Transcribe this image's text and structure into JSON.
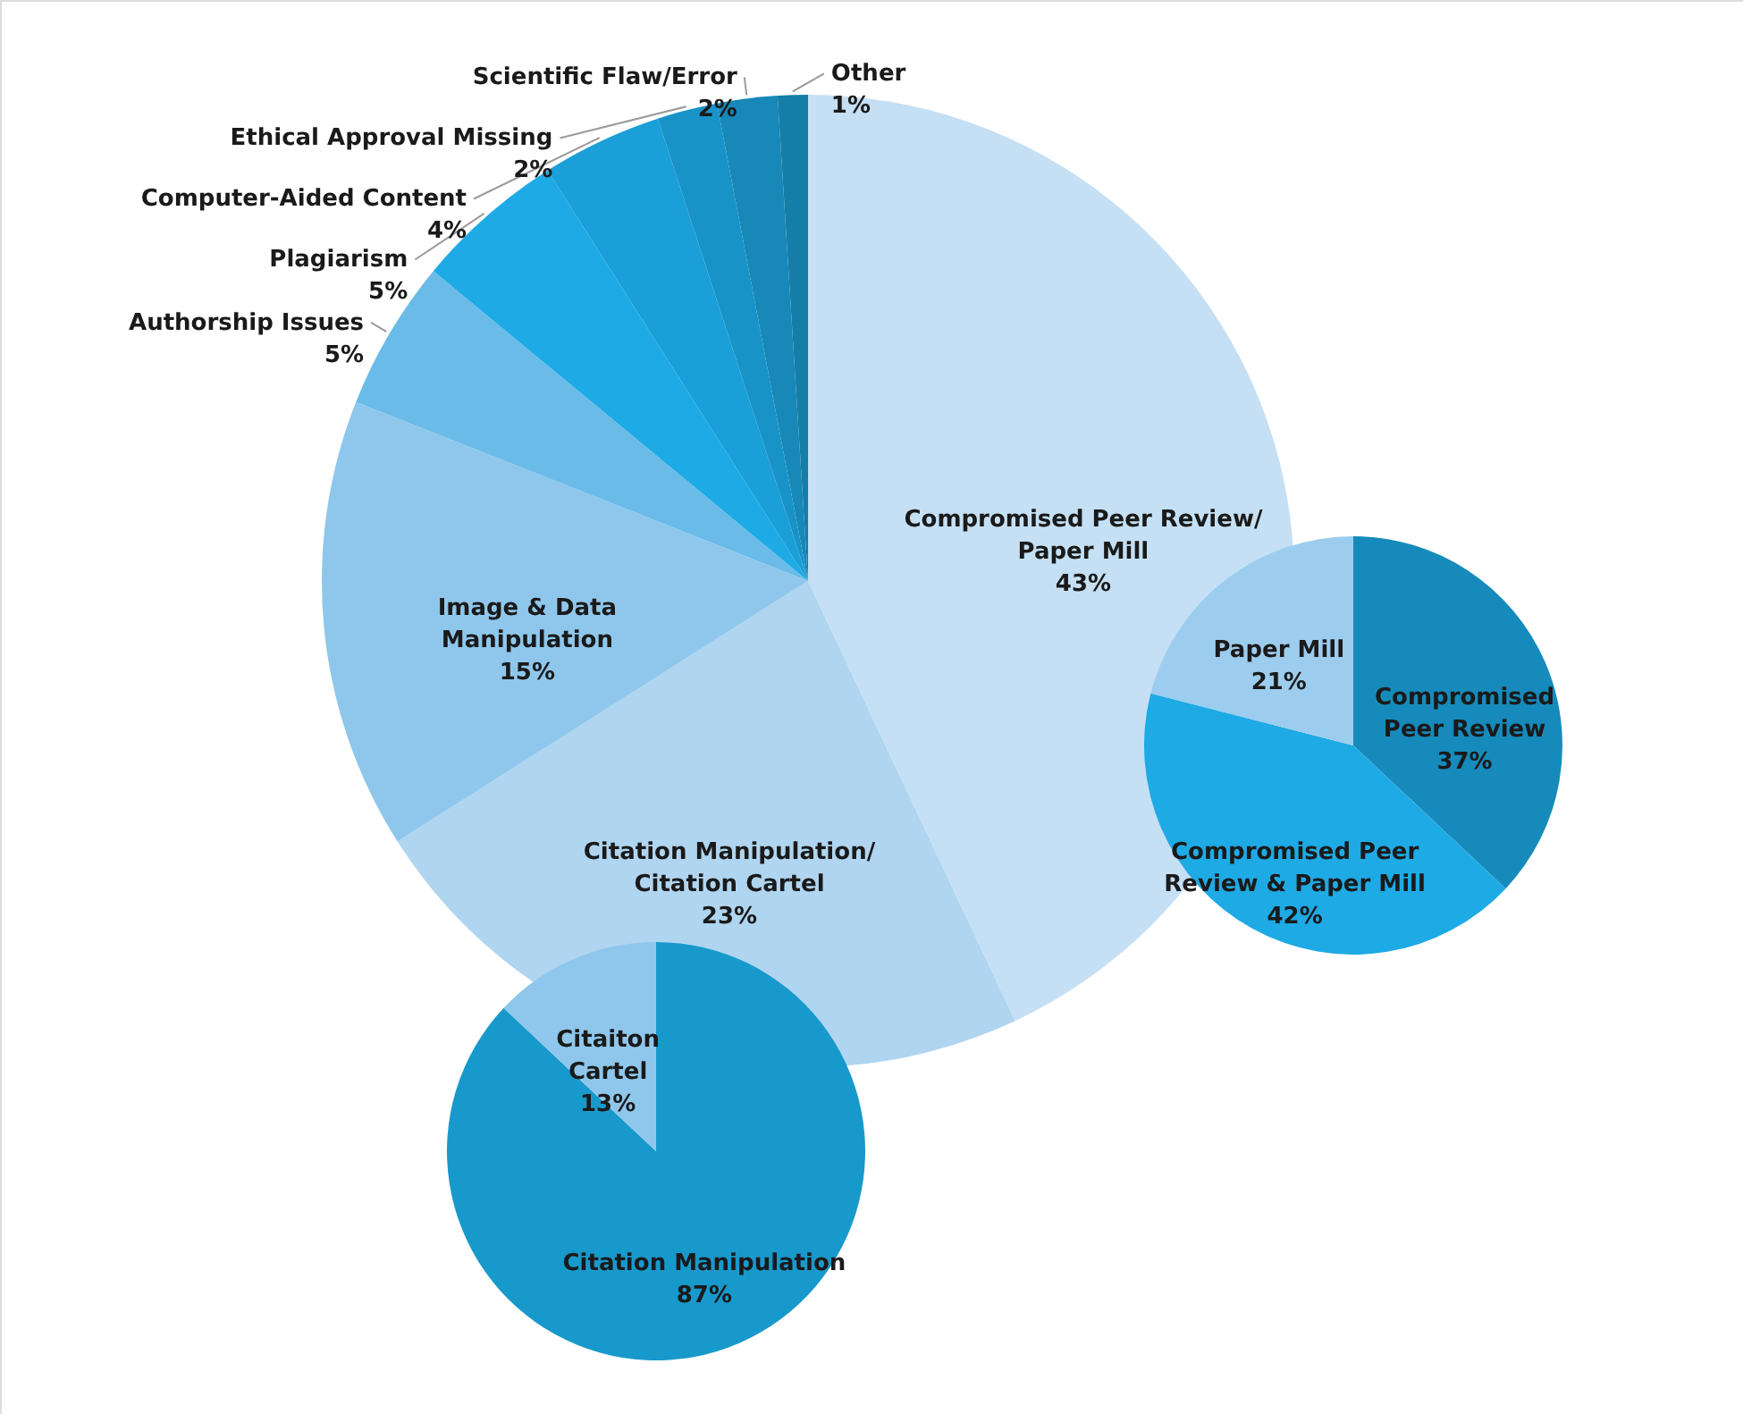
{
  "chart_data": [
    {
      "type": "pie",
      "categories": [
        "Compromised Peer Review/Paper Mill",
        "Citation Manipulation/Citation Cartel",
        "Image & Data Manipulation",
        "Authorship Issues",
        "Plagiarism",
        "Computer-Aided Content",
        "Ethical Approval Missing",
        "Scientific Flaw/Error",
        "Other"
      ],
      "values": [
        43,
        23,
        15,
        5,
        5,
        4,
        2,
        2,
        1
      ],
      "value_labels": [
        "43%",
        "23%",
        "15%",
        "5%",
        "5%",
        "4%",
        "2%",
        "2%",
        "1%"
      ],
      "colors": [
        "#c5e0f4",
        "#b0d5f0",
        "#8fc7ec",
        "#6bbbe8",
        "#1eaae5",
        "#1a9fd8",
        "#1893c8",
        "#1788b8",
        "#157ea8"
      ]
    },
    {
      "type": "pie",
      "categories": [
        "Compromised Peer Review",
        "Compromised Peer Review & Paper Mill",
        "Paper Mill"
      ],
      "values": [
        37,
        42,
        21
      ],
      "value_labels": [
        "37%",
        "42%",
        "21%"
      ],
      "colors": [
        "#168bbb",
        "#1eaae5",
        "#9ccdee"
      ]
    },
    {
      "type": "pie",
      "categories": [
        "Citation Manipulation",
        "Citaiton Cartel"
      ],
      "values": [
        87,
        13
      ],
      "value_labels": [
        "87%",
        "13%"
      ],
      "colors": [
        "#1899cc",
        "#8fc7ec"
      ]
    }
  ]
}
